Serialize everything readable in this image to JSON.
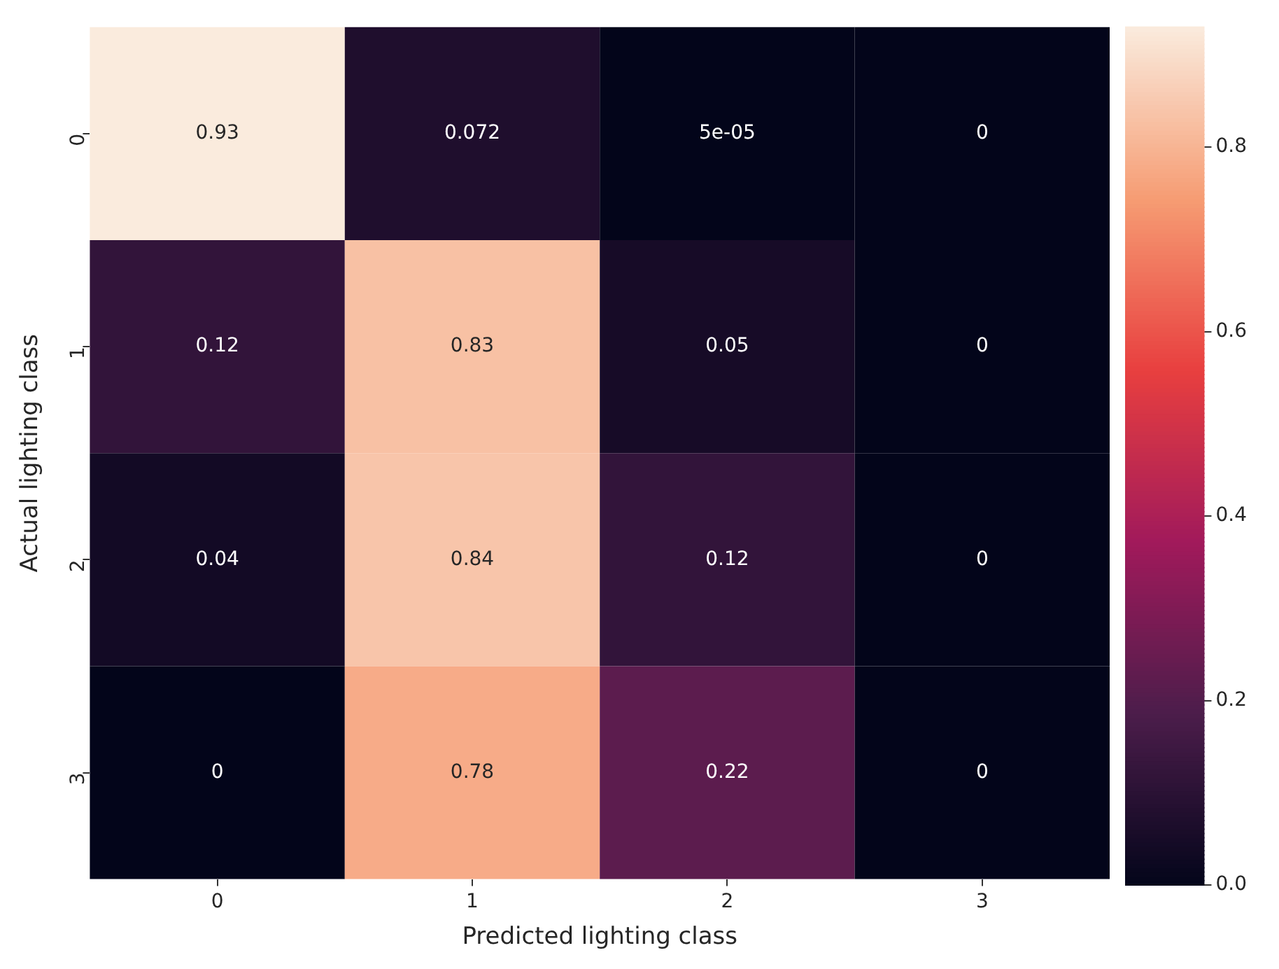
{
  "chart_data": {
    "type": "heatmap",
    "xlabel": "Predicted lighting class",
    "ylabel": "Actual lighting class",
    "categories": [
      "0",
      "1",
      "2",
      "3"
    ],
    "y_categories": [
      "0",
      "1",
      "2",
      "3"
    ],
    "cells": [
      [
        0.93,
        0.072,
        5e-05,
        0
      ],
      [
        0.12,
        0.83,
        0.05,
        0
      ],
      [
        0.04,
        0.84,
        0.12,
        0
      ],
      [
        0,
        0.78,
        0.22,
        0
      ]
    ],
    "cell_labels": [
      [
        "0.93",
        "0.072",
        "5e-05",
        "0"
      ],
      [
        "0.12",
        "0.83",
        "0.05",
        "0"
      ],
      [
        "0.04",
        "0.84",
        "0.12",
        "0"
      ],
      [
        "0",
        "0.78",
        "0.22",
        "0"
      ]
    ],
    "clim": [
      0,
      0.93
    ],
    "cticks": [
      {
        "value": 0,
        "label": "0.0"
      },
      {
        "value": 0.2,
        "label": "0.2"
      },
      {
        "value": 0.4,
        "label": "0.4"
      },
      {
        "value": 0.6,
        "label": "0.6"
      },
      {
        "value": 0.8,
        "label": "0.8"
      }
    ]
  }
}
